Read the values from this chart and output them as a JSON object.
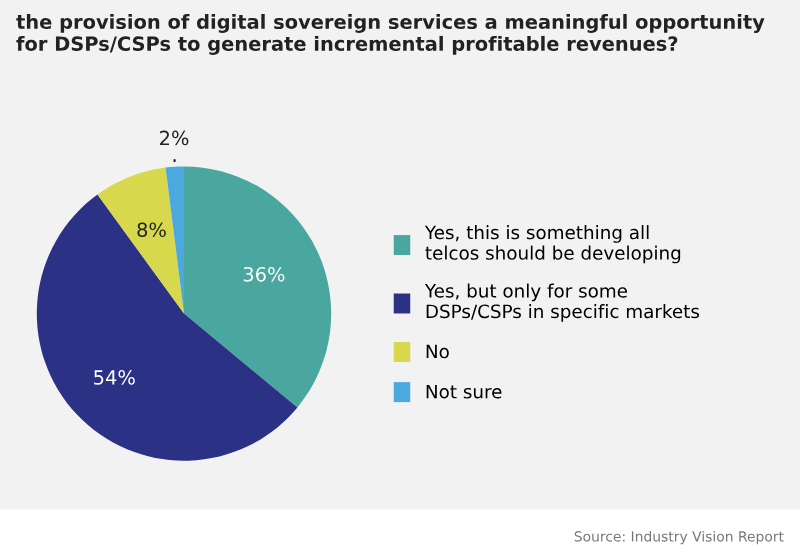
{
  "chart_data": {
    "type": "pie",
    "title": "the provision of digital sovereign services a meaningful opportunity for DSPs/CSPs to generate incremental profitable revenues?",
    "categories": [
      "Yes, this is something all telcos should be developing",
      "Yes, but only for some DSPs/CSPs in specific markets",
      "No",
      "Not sure"
    ],
    "values": [
      36,
      54,
      8,
      2
    ],
    "colors": [
      "#4aa79f",
      "#2b3286",
      "#d8d84c",
      "#4ba9df"
    ],
    "value_labels": [
      "36%",
      "54%",
      "8%",
      "2%"
    ],
    "legend": "right",
    "annotations": [
      "Source: Industry Vision Report"
    ]
  }
}
